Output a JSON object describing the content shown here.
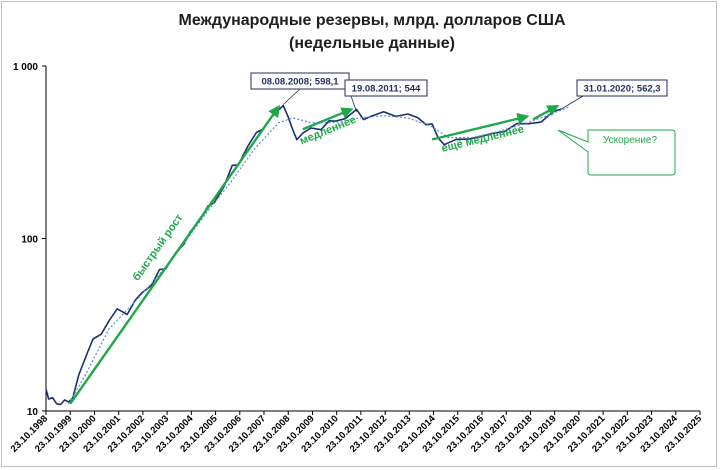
{
  "chart_data": {
    "type": "line",
    "title_line1": "Международные резервы, млрд. долларов США",
    "title_line2": "(недельные данные)",
    "y_scale": "log",
    "ylim": [
      10,
      1000
    ],
    "y_ticks": [
      "10",
      "100",
      "1 000"
    ],
    "x_range": [
      "1998-10-23",
      "2025-10-23"
    ],
    "x_ticks": [
      "23.10.1998",
      "23.10.1999",
      "23.10.2000",
      "23.10.2001",
      "23.10.2002",
      "23.10.2003",
      "23.10.2004",
      "23.10.2005",
      "23.10.2006",
      "23.10.2007",
      "23.10.2008",
      "23.10.2009",
      "23.10.2010",
      "23.10.2011",
      "23.10.2012",
      "23.10.2013",
      "23.10.2014",
      "23.10.2015",
      "23.10.2016",
      "23.10.2017",
      "23.10.2018",
      "23.10.2019",
      "23.10.2020",
      "23.10.2021",
      "23.10.2022",
      "23.10.2023",
      "23.10.2024",
      "23.10.2025"
    ],
    "grid": false,
    "series": [
      {
        "color": "#1f2f6f",
        "style": "solid",
        "points": [
          [
            "1998-10-23",
            13.4
          ],
          [
            "1998-12-01",
            12.0
          ],
          [
            "1999-02-01",
            11.6
          ],
          [
            "1999-04-01",
            11.2
          ],
          [
            "1999-06-01",
            11.0
          ],
          [
            "1999-08-01",
            11.3
          ],
          [
            "1999-10-01",
            11.6
          ],
          [
            "1999-12-01",
            11.8
          ],
          [
            "2000-03-01",
            16.0
          ],
          [
            "2000-07-01",
            22.0
          ],
          [
            "2000-10-01",
            25.5
          ],
          [
            "2001-02-01",
            28.0
          ],
          [
            "2001-06-01",
            34.0
          ],
          [
            "2001-10-01",
            38.0
          ],
          [
            "2002-03-01",
            37.0
          ],
          [
            "2002-07-01",
            44.0
          ],
          [
            "2002-10-01",
            47.0
          ],
          [
            "2003-03-01",
            55.0
          ],
          [
            "2003-07-01",
            65.0
          ],
          [
            "2003-10-01",
            66.0
          ],
          [
            "2004-03-01",
            85.0
          ],
          [
            "2004-07-01",
            90.0
          ],
          [
            "2004-10-01",
            110.0
          ],
          [
            "2005-03-01",
            130.0
          ],
          [
            "2005-07-01",
            150.0
          ],
          [
            "2005-10-01",
            165.0
          ],
          [
            "2006-03-01",
            200.0
          ],
          [
            "2006-07-01",
            260.0
          ],
          [
            "2006-10-01",
            275.0
          ],
          [
            "2007-03-01",
            340.0
          ],
          [
            "2007-07-01",
            410.0
          ],
          [
            "2007-10-01",
            440.0
          ],
          [
            "2008-03-01",
            500.0
          ],
          [
            "2008-08-08",
            598.1
          ],
          [
            "2008-10-15",
            520.0
          ],
          [
            "2008-12-15",
            430.0
          ],
          [
            "2009-03-01",
            384.0
          ],
          [
            "2009-06-01",
            405.0
          ],
          [
            "2009-10-01",
            430.0
          ],
          [
            "2010-03-01",
            440.0
          ],
          [
            "2010-07-01",
            470.0
          ],
          [
            "2010-10-01",
            480.0
          ],
          [
            "2011-03-01",
            505.0
          ],
          [
            "2011-08-19",
            544.0
          ],
          [
            "2011-12-01",
            498.0
          ],
          [
            "2012-04-01",
            515.0
          ],
          [
            "2012-10-01",
            530.0
          ],
          [
            "2013-04-01",
            525.0
          ],
          [
            "2013-10-01",
            520.0
          ],
          [
            "2014-03-01",
            495.0
          ],
          [
            "2014-07-01",
            470.0
          ],
          [
            "2014-10-01",
            450.0
          ],
          [
            "2015-01-01",
            385.0
          ],
          [
            "2015-04-01",
            356.0
          ],
          [
            "2015-10-01",
            365.0
          ],
          [
            "2016-04-01",
            385.0
          ],
          [
            "2016-10-01",
            390.0
          ],
          [
            "2017-04-01",
            398.0
          ],
          [
            "2017-10-01",
            430.0
          ],
          [
            "2018-04-01",
            455.0
          ],
          [
            "2018-10-01",
            460.0
          ],
          [
            "2019-04-01",
            485.0
          ],
          [
            "2019-10-01",
            530.0
          ],
          [
            "2020-01-31",
            562.3
          ]
        ]
      },
      {
        "color": "#5a8fd0",
        "style": "dotted",
        "points": [
          [
            "1999-10-01",
            11.0
          ],
          [
            "2000-06-01",
            16.0
          ],
          [
            "2001-06-01",
            30.0
          ],
          [
            "2002-06-01",
            42.0
          ],
          [
            "2003-06-01",
            60.0
          ],
          [
            "2004-06-01",
            90.0
          ],
          [
            "2005-06-01",
            140.0
          ],
          [
            "2006-06-01",
            210.0
          ],
          [
            "2007-06-01",
            330.0
          ],
          [
            "2008-06-01",
            470.0
          ],
          [
            "2009-01-01",
            500.0
          ],
          [
            "2009-10-01",
            470.0
          ],
          [
            "2010-10-01",
            470.0
          ],
          [
            "2011-10-01",
            500.0
          ],
          [
            "2012-10-01",
            515.0
          ],
          [
            "2013-10-01",
            500.0
          ],
          [
            "2014-10-01",
            445.0
          ],
          [
            "2015-06-01",
            385.0
          ],
          [
            "2016-06-01",
            385.0
          ],
          [
            "2017-06-01",
            415.0
          ],
          [
            "2018-06-01",
            455.0
          ],
          [
            "2019-06-01",
            510.0
          ],
          [
            "2020-06-01",
            580.0
          ]
        ]
      }
    ],
    "callouts": [
      {
        "text": "08.08.2008;  598,1",
        "x": "2008-08-08",
        "y": 598.1
      },
      {
        "text": "19.08.2011;  544",
        "x": "2011-08-19",
        "y": 544.0
      },
      {
        "text": "31.01.2020;  562,3",
        "x": "2020-01-31",
        "y": 562.3
      }
    ],
    "arrows": [
      {
        "label": "быстрый рост",
        "from": [
          "1999-10-23",
          11.0
        ],
        "to": [
          "2008-06-01",
          580.0
        ]
      },
      {
        "label": "медленнее",
        "from": [
          "2009-06-01",
          430.0
        ],
        "to": [
          "2011-06-01",
          560.0
        ]
      },
      {
        "label": "ещё медленнее",
        "from": [
          "2014-10-01",
          375.0
        ],
        "to": [
          "2018-09-01",
          510.0
        ]
      },
      {
        "label": "",
        "from": [
          "2018-12-01",
          490.0
        ],
        "to": [
          "2019-12-01",
          585.0
        ]
      }
    ],
    "annotation_box": {
      "text": "Ускорение?"
    }
  }
}
